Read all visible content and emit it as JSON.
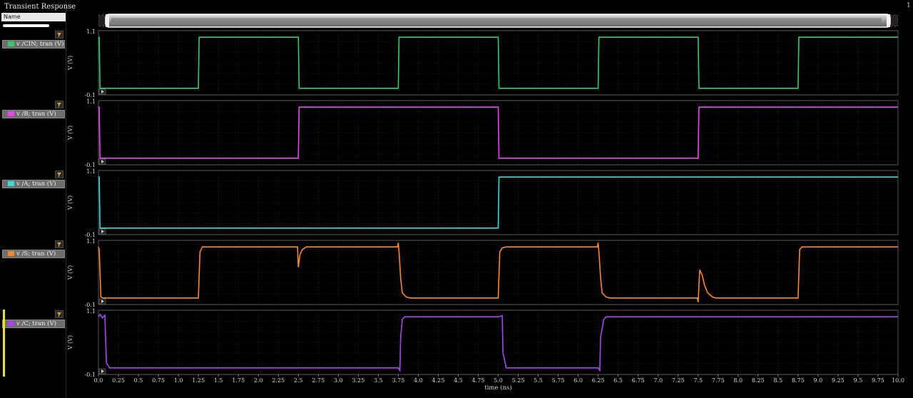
{
  "window": {
    "title": "Transient Response",
    "corner_label": "1"
  },
  "browser": {
    "header": "Name"
  },
  "colors": {
    "background": "#000000",
    "frame": "#5a5a5a",
    "grid": "#3a3a3a"
  },
  "icons": [
    "filter-icon",
    "expand-arrow-icon",
    "scrollbar-handle-icon"
  ],
  "chart_data": {
    "type": "line",
    "xlabel": "time (ns)",
    "xlim": [
      0,
      10
    ],
    "x_ticks": [
      "0.0",
      "0.25",
      "0.5",
      "0.75",
      "1.0",
      "1.25",
      "1.5",
      "1.75",
      "2.0",
      "2.25",
      "2.5",
      "2.75",
      "3.0",
      "3.25",
      "3.5",
      "3.75",
      "4.0",
      "4.25",
      "4.5",
      "4.75",
      "5.0",
      "5.25",
      "5.5",
      "5.75",
      "6.0",
      "6.25",
      "6.5",
      "6.75",
      "7.0",
      "7.25",
      "7.5",
      "7.75",
      "8.0",
      "8.25",
      "8.5",
      "8.75",
      "9.0",
      "9.25",
      "9.5",
      "9.75",
      "10.0"
    ],
    "series": [
      {
        "name": "v /CIN; tran (V)",
        "color": "#33cc66",
        "ylabel": "V (V)",
        "ylim": [
          -0.1,
          1.1
        ],
        "y_ticks": [
          "1.1",
          "-0.1"
        ],
        "x": [
          0,
          0.01,
          0.02,
          1.25,
          1.26,
          2.5,
          2.51,
          3.75,
          3.76,
          5.0,
          5.01,
          6.25,
          6.26,
          7.5,
          7.51,
          8.75,
          8.76,
          10.0
        ],
        "y": [
          1.0,
          1.0,
          0.0,
          0.0,
          1.0,
          1.0,
          0.0,
          0.0,
          1.0,
          1.0,
          0.0,
          0.0,
          1.0,
          1.0,
          0.0,
          0.0,
          1.0,
          1.0
        ]
      },
      {
        "name": "v /B; tran (V)",
        "color": "#ee44ee",
        "ylabel": "V (V)",
        "ylim": [
          -0.1,
          1.1
        ],
        "y_ticks": [
          "1.1",
          "-0.1"
        ],
        "x": [
          0,
          0.01,
          0.02,
          2.5,
          2.51,
          5.0,
          5.01,
          7.5,
          7.51,
          10.0
        ],
        "y": [
          1.0,
          1.0,
          0.0,
          0.0,
          1.0,
          1.0,
          0.0,
          0.0,
          1.0,
          1.0
        ]
      },
      {
        "name": "v /A; tran (V)",
        "color": "#33dddd",
        "ylabel": "V (V)",
        "ylim": [
          -0.1,
          1.1
        ],
        "y_ticks": [
          "1.1",
          "-0.1"
        ],
        "x": [
          0,
          0.01,
          0.02,
          5.0,
          5.01,
          10.0
        ],
        "y": [
          1.0,
          1.0,
          0.0,
          0.0,
          1.0,
          1.0
        ]
      },
      {
        "name": "v /S; tran (V)",
        "color": "#ff8822",
        "ylabel": "V (V)",
        "ylim": [
          -0.1,
          1.1
        ],
        "y_ticks": [
          "1.1",
          "-0.1"
        ],
        "x": [
          0,
          0.01,
          0.03,
          0.06,
          0.1,
          1.25,
          1.27,
          1.3,
          2.49,
          2.5,
          2.52,
          2.55,
          2.6,
          3.74,
          3.75,
          3.76,
          3.78,
          3.8,
          3.85,
          3.9,
          5.0,
          5.02,
          5.05,
          5.1,
          6.24,
          6.25,
          6.26,
          6.28,
          6.3,
          6.35,
          6.4,
          7.49,
          7.5,
          7.52,
          7.55,
          7.58,
          7.62,
          7.68,
          7.72,
          8.75,
          8.77,
          8.8,
          10.0
        ],
        "y": [
          1.0,
          0.95,
          0.02,
          0.0,
          0.0,
          0.0,
          0.9,
          1.0,
          1.0,
          0.6,
          0.85,
          0.95,
          1.0,
          1.0,
          1.08,
          0.9,
          0.4,
          0.1,
          0.02,
          0.0,
          0.0,
          0.9,
          0.98,
          1.0,
          1.0,
          1.08,
          0.9,
          0.4,
          0.1,
          0.02,
          0.0,
          0.0,
          -0.08,
          0.55,
          0.45,
          0.25,
          0.1,
          0.02,
          0.0,
          0.0,
          0.95,
          1.0,
          1.0
        ]
      },
      {
        "name": "v /C; tran (V)",
        "color": "#aa44ee",
        "ylabel": "V (V)",
        "ylim": [
          -0.1,
          1.1
        ],
        "y_ticks": [
          "1.1",
          "-0.1"
        ],
        "x": [
          0,
          0.02,
          0.05,
          0.08,
          0.1,
          0.14,
          3.75,
          3.77,
          3.78,
          3.8,
          3.83,
          5.0,
          5.05,
          5.06,
          5.1,
          5.13,
          6.25,
          6.27,
          6.28,
          6.32,
          6.35,
          10.0
        ],
        "y": [
          1.0,
          1.05,
          0.98,
          1.03,
          0.1,
          0.0,
          0.0,
          -0.05,
          0.6,
          0.95,
          1.0,
          1.0,
          1.02,
          0.3,
          0.0,
          0.0,
          0.0,
          -0.05,
          0.6,
          0.95,
          1.0,
          1.0
        ]
      }
    ]
  }
}
